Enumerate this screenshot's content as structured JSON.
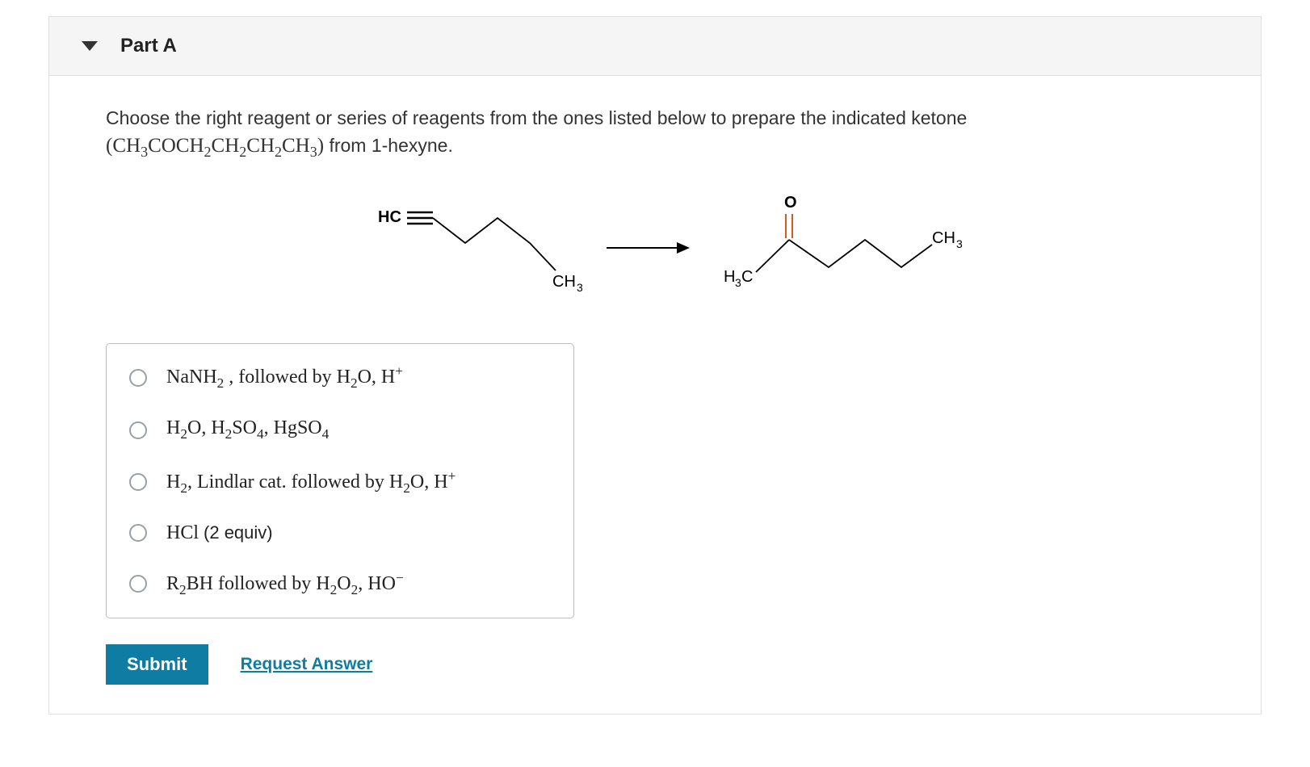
{
  "header": {
    "part_label": "Part A"
  },
  "prompt": {
    "line1": "Choose the right reagent or series of reagents from the ones listed below to prepare the indicated ketone",
    "formula_open": "(",
    "formula_body": "CH₃COCH₂CH₂CH₂CH₃",
    "formula_close": ")",
    "line2_tail": " from 1-hexyne."
  },
  "diagram": {
    "reactant": {
      "hc_label": "HC",
      "ch3_label": "CH",
      "ch3_sub": "3",
      "stroke": "#000000",
      "stroke_width": 1.8
    },
    "arrow": {
      "stroke": "#000000",
      "stroke_width": 1.8
    },
    "product": {
      "o_label": "O",
      "h3c_label": "H",
      "h3c_sub": "3",
      "h3c_tail": "C",
      "ch3_label": "CH",
      "ch3_sub": "3",
      "stroke": "#000000",
      "dbl_color": "#d55a1f",
      "stroke_width": 1.8
    }
  },
  "options": [
    {
      "html": "NaNH<span class='sub'>2</span> , followed by H<span class='sub'>2</span>O, H<span class='sup'>+</span>"
    },
    {
      "html": "H<span class='sub'>2</span>O, H<span class='sub'>2</span>SO<span class='sub'>4</span>, HgSO<span class='sub'>4</span>"
    },
    {
      "html": "H<span class='sub'>2</span>, Lindlar cat. followed by H<span class='sub'>2</span>O, H<span class='sup'>+</span>"
    },
    {
      "html": "HCl <span style='font-family:Arial,sans-serif;font-size:22px'>(2 equiv)</span>"
    },
    {
      "html": "R<span class='sub'>2</span>BH followed by H<span class='sub'>2</span>O<span class='sub'>2</span>, HO<span class='sup'>&minus;</span>"
    }
  ],
  "actions": {
    "submit_label": "Submit",
    "request_label": "Request Answer"
  },
  "colors": {
    "header_bg": "#f5f5f5",
    "border": "#e0e0e0",
    "options_border": "#bcbcbc",
    "radio_border": "#9aa0a6",
    "submit_bg": "#0e7ca3",
    "submit_fg": "#ffffff",
    "link": "#0e7ca3",
    "text": "#333333"
  }
}
